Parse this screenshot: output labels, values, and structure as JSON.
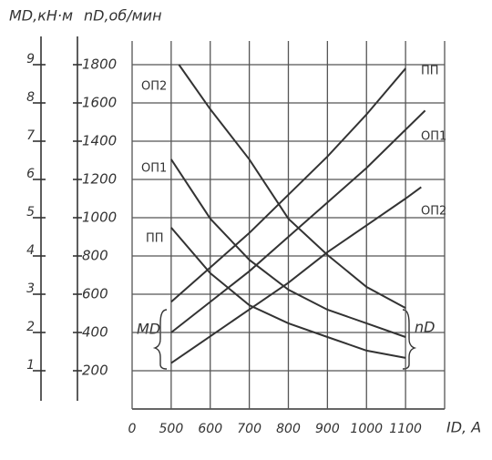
{
  "chart_data": {
    "type": "line",
    "y_label": "nD,об/мин",
    "y2_label": "MD,кН·м",
    "x_label": "ID, A",
    "annotations": [
      "MD",
      "nD"
    ],
    "xlim": [
      400,
      1200
    ],
    "xticks": [
      {
        "value": 400,
        "label": "0"
      },
      500,
      600,
      700,
      800,
      900,
      1000,
      1100
    ],
    "ylim": [
      0,
      2000
    ],
    "yticks": [
      200,
      400,
      600,
      800,
      1000,
      1200,
      1400,
      1600,
      1800
    ],
    "y2lim": [
      0,
      10
    ],
    "y2ticks": [
      1,
      2,
      3,
      4,
      5,
      6,
      7,
      8,
      9
    ],
    "grid": true,
    "series": [
      {
        "name": "ОП2",
        "color": "#333333",
        "x": [
          520,
          600,
          700,
          800,
          900,
          1000,
          1100
        ],
        "values": [
          1800,
          1567,
          1305,
          995,
          805,
          638,
          528
        ]
      },
      {
        "name": "ОП1",
        "color": "#333333",
        "x": [
          500,
          600,
          700,
          800,
          900,
          1000,
          1100
        ],
        "values": [
          1305,
          995,
          780,
          624,
          519,
          448,
          376
        ]
      },
      {
        "name": "ПП",
        "color": "#333333",
        "x": [
          500,
          600,
          700,
          800,
          900,
          1000,
          1100
        ],
        "values": [
          948,
          710,
          543,
          448,
          376,
          305,
          267
        ]
      },
      {
        "name": "ПП",
        "color": "#333333",
        "axis": "y2",
        "x": [
          500,
          600,
          700,
          800,
          900,
          1000,
          1100
        ],
        "values": [
          2.8,
          3.7,
          4.6,
          5.6,
          6.6,
          7.7,
          8.9
        ]
      },
      {
        "name": "ОП1",
        "color": "#333333",
        "axis": "y2",
        "x": [
          500,
          600,
          700,
          800,
          900,
          1000,
          1100,
          1150
        ],
        "values": [
          2.0,
          2.8,
          3.6,
          4.5,
          5.4,
          6.3,
          7.3,
          7.8
        ]
      },
      {
        "name": "ОП2",
        "color": "#333333",
        "axis": "y2",
        "x": [
          500,
          600,
          700,
          800,
          900,
          1000,
          1100,
          1140
        ],
        "values": [
          1.2,
          1.9,
          2.6,
          3.3,
          4.1,
          4.8,
          5.5,
          5.8
        ]
      }
    ]
  }
}
